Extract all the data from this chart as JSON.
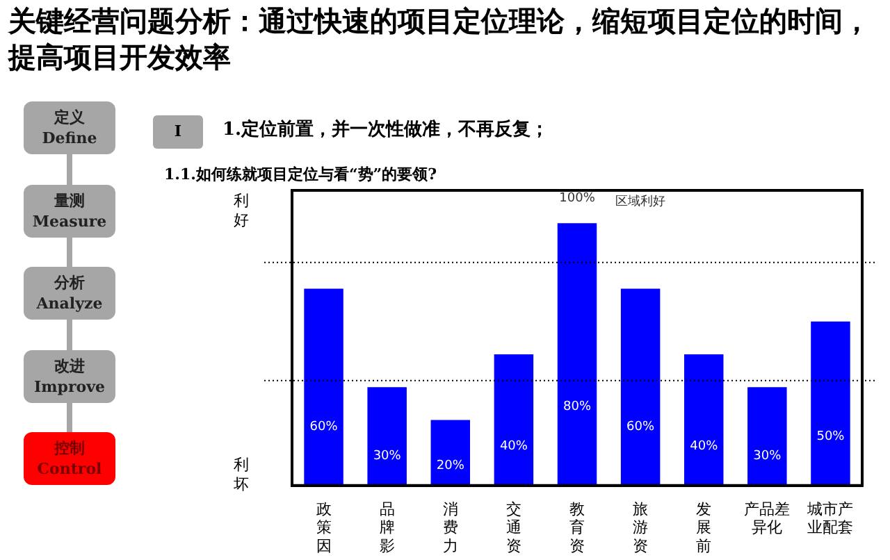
{
  "chart_data": {
    "type": "bar",
    "title": "关键经营问题分析：通过快速的项目定位理论，缩短项目定位的时间，提高项目开发效率",
    "subtitle": "1.定位前置，并一次性做准，不再反复；",
    "categories": [
      "政策因",
      "品牌影",
      "消费力",
      "交通资",
      "教育资",
      "旅游资",
      "发展前",
      "产品差异化",
      "城市产业配套"
    ],
    "values": [
      60,
      30,
      20,
      40,
      80,
      60,
      40,
      30,
      50
    ],
    "value_labels": [
      "60%",
      "30%",
      "20%",
      "40%",
      "80%",
      "60%",
      "40%",
      "30%",
      "50%"
    ],
    "color": "#0000ff",
    "grid": false,
    "legend": false,
    "tick_labels": "x",
    "ref_lines": [
      {
        "axis": "y",
        "value": 68,
        "line_style": "dotted",
        "color": "#000000"
      },
      {
        "axis": "y",
        "value": 32,
        "line_style": "dotted",
        "color": "#000000"
      }
    ],
    "annotations": [
      "定义 Define",
      "量测 Measure",
      "分析 Analyze",
      "改进 Improve",
      "控制 Control",
      "I",
      "1.1.如何练就项目定位与看“势”的要领?",
      "利好",
      "利坏",
      "区域利好",
      "100%"
    ]
  }
}
